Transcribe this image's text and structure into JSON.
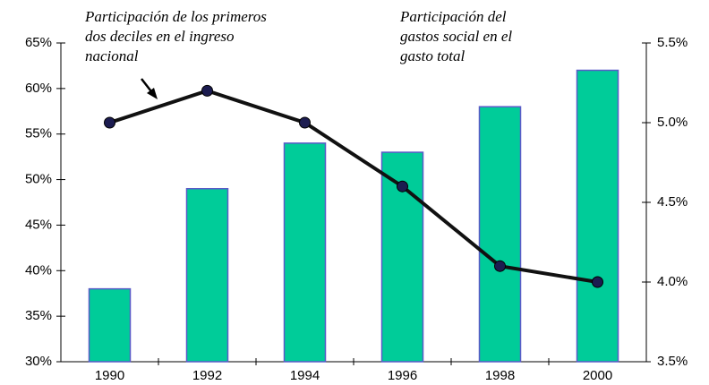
{
  "chart_data": {
    "type": "bar",
    "categories": [
      "1990",
      "1992",
      "1994",
      "1996",
      "1998",
      "2000"
    ],
    "series": [
      {
        "name": "Participación del gastos social en el gasto total",
        "type": "bar",
        "axis": "y",
        "color": "#00cc99",
        "edge_color": "#5a5ac8",
        "values": [
          38,
          49,
          54,
          53,
          58,
          62
        ]
      },
      {
        "name": "Participación de los primeros dos deciles en el ingreso nacional",
        "type": "line",
        "axis": "y2",
        "color": "#111111",
        "marker_color": "#1c1c50",
        "values": [
          5.0,
          5.2,
          5.0,
          4.6,
          4.1,
          4.0
        ]
      }
    ],
    "ylim": [
      30,
      65
    ],
    "yticks": [
      {
        "value": 30,
        "label": "30%"
      },
      {
        "value": 35,
        "label": "35%"
      },
      {
        "value": 40,
        "label": "40%"
      },
      {
        "value": 45,
        "label": "45%"
      },
      {
        "value": 50,
        "label": "50%"
      },
      {
        "value": 55,
        "label": "55%"
      },
      {
        "value": 60,
        "label": "60%"
      },
      {
        "value": 65,
        "label": "65%"
      }
    ],
    "y2lim": [
      3.5,
      5.5
    ],
    "y2ticks": [
      {
        "value": 3.5,
        "label": "3.5%"
      },
      {
        "value": 4,
        "label": "4.0%"
      },
      {
        "value": 4.5,
        "label": "4.5%"
      },
      {
        "value": 5,
        "label": "5.0%"
      },
      {
        "value": 5.5,
        "label": "5.5%"
      }
    ],
    "grid": false
  }
}
